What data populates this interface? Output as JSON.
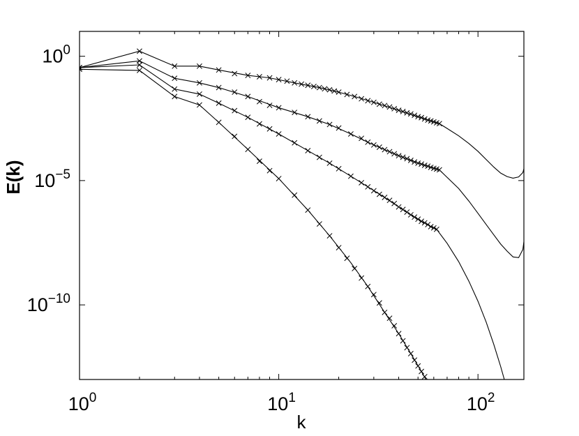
{
  "chart_data": {
    "type": "line",
    "title": "",
    "xlabel": "k",
    "ylabel": "E(k)",
    "xscale": "log",
    "yscale": "log",
    "xlim": [
      1,
      170
    ],
    "ylim": [
      1e-13,
      10.0
    ],
    "grid": false,
    "legend": "none",
    "x_ticks": [
      {
        "value": 1,
        "base": "10",
        "exp": "0"
      },
      {
        "value": 10,
        "base": "10",
        "exp": "1"
      },
      {
        "value": 100,
        "base": "10",
        "exp": "2"
      }
    ],
    "y_ticks": [
      {
        "value": 1,
        "base": "10",
        "exp": "0"
      },
      {
        "value": 1e-05,
        "base": "10",
        "exp": "−5"
      },
      {
        "value": 1e-10,
        "base": "10",
        "exp": "−10"
      }
    ],
    "line_color": "#000000",
    "series": [
      {
        "line_x": [
          1,
          2,
          3,
          4,
          5,
          7,
          9,
          12,
          16,
          20,
          25,
          30,
          35,
          40,
          45,
          50,
          55,
          60,
          64,
          70,
          80,
          90,
          100,
          110,
          120,
          130,
          140,
          150,
          160,
          168,
          170
        ],
        "line_y": [
          0.35,
          1.6,
          0.4,
          0.4,
          0.28,
          0.17,
          0.135,
          0.085,
          0.055,
          0.036,
          0.022,
          0.014,
          0.0095,
          0.0067,
          0.0049,
          0.0037,
          0.0029,
          0.0023,
          0.00195,
          0.00125,
          0.00063,
          0.00031,
          0.00015,
          7e-05,
          3.5e-05,
          2e-05,
          1.45e-05,
          1.25e-05,
          1.4e-05,
          2.1e-05,
          3e-05
        ],
        "mark_x": [
          1,
          2,
          3,
          4,
          5,
          6,
          7,
          8,
          9,
          10,
          11,
          12,
          13,
          14,
          15,
          16,
          17,
          18,
          19,
          20,
          22,
          24,
          26,
          28,
          30,
          32,
          34,
          36,
          38,
          40,
          42,
          44,
          46,
          48,
          50,
          52,
          54,
          56,
          58,
          60,
          62,
          64
        ],
        "mark_y": [
          0.35,
          1.6,
          0.4,
          0.4,
          0.28,
          0.2,
          0.17,
          0.15,
          0.135,
          0.115,
          0.1,
          0.085,
          0.076,
          0.068,
          0.061,
          0.055,
          0.049,
          0.045,
          0.04,
          0.036,
          0.029,
          0.024,
          0.0195,
          0.0163,
          0.014,
          0.0118,
          0.0104,
          0.0091,
          0.0078,
          0.0067,
          0.006,
          0.0053,
          0.0048,
          0.0042,
          0.0037,
          0.0034,
          0.003,
          0.0027,
          0.0025,
          0.0023,
          0.0021,
          0.00195
        ]
      },
      {
        "line_x": [
          1,
          2,
          3,
          4,
          5,
          7,
          10,
          14,
          18,
          23,
          28,
          34,
          40,
          46,
          52,
          58,
          64,
          70,
          80,
          90,
          100,
          110,
          120,
          130,
          140,
          150,
          160,
          168,
          170
        ],
        "line_y": [
          0.35,
          0.65,
          0.13,
          0.085,
          0.055,
          0.024,
          0.0085,
          0.0037,
          0.0018,
          0.00075,
          0.00035,
          0.000175,
          0.0001,
          6.5e-05,
          4.6e-05,
          3.4e-05,
          2.7e-05,
          1.35e-05,
          4.8e-06,
          1.5e-06,
          4.8e-07,
          1.7e-07,
          6.6e-08,
          2.8e-08,
          1.45e-08,
          8.5e-09,
          8e-09,
          1.7e-08,
          3.5e-08
        ],
        "mark_x": [
          1,
          2,
          3,
          4,
          5,
          6,
          7,
          8,
          9,
          10,
          12,
          14,
          16,
          18,
          20,
          23,
          26,
          28,
          30,
          32,
          34,
          36,
          38,
          40,
          42,
          44,
          46,
          48,
          50,
          52,
          54,
          56,
          58,
          60,
          62,
          64
        ],
        "mark_y": [
          0.35,
          0.65,
          0.13,
          0.085,
          0.055,
          0.036,
          0.024,
          0.015,
          0.0106,
          0.0085,
          0.0055,
          0.0037,
          0.0025,
          0.0018,
          0.0013,
          0.00075,
          0.0005,
          0.00035,
          0.00027,
          0.00022,
          0.000175,
          0.000145,
          0.00012,
          0.0001,
          8.7e-05,
          7.6e-05,
          6.5e-05,
          5.6e-05,
          5e-05,
          4.6e-05,
          4.1e-05,
          3.8e-05,
          3.4e-05,
          3.1e-05,
          2.9e-05,
          2.7e-05
        ]
      },
      {
        "line_x": [
          1,
          2,
          3,
          4,
          5,
          7,
          10,
          14,
          18,
          23,
          28,
          34,
          40,
          46,
          52,
          58,
          62,
          70,
          80,
          90,
          100,
          110,
          120,
          130,
          140,
          150,
          160,
          166,
          170
        ],
        "line_y": [
          0.35,
          0.45,
          0.048,
          0.03,
          0.013,
          0.0035,
          0.00075,
          0.00016,
          5e-05,
          1.5e-05,
          5.6e-06,
          2.1e-06,
          8.7e-07,
          4.2e-07,
          2.3e-07,
          1.4e-07,
          1.1e-07,
          3e-08,
          5.5e-09,
          9e-10,
          1.4e-10,
          2e-11,
          2.6e-12,
          3.3e-13,
          4e-14,
          5.5e-15,
          1e-15,
          6e-16,
          5e-16
        ],
        "mark_x": [
          1,
          2,
          3,
          4,
          5,
          6,
          7,
          8,
          9,
          10,
          12,
          14,
          16,
          18,
          20,
          23,
          26,
          28,
          30,
          32,
          34,
          36,
          38,
          40,
          42,
          44,
          46,
          48,
          50,
          52,
          54,
          56,
          58,
          60,
          62
        ],
        "mark_y": [
          0.35,
          0.45,
          0.048,
          0.03,
          0.013,
          0.0065,
          0.0035,
          0.0019,
          0.0012,
          0.00075,
          0.00033,
          0.00016,
          8.6e-05,
          5e-05,
          3e-05,
          1.5e-05,
          8.2e-06,
          5.6e-06,
          3.9e-06,
          2.8e-06,
          2.1e-06,
          1.6e-06,
          1.2e-06,
          8.7e-07,
          6.9e-07,
          5.4e-07,
          4.2e-07,
          3.4e-07,
          2.8e-07,
          2.3e-07,
          2e-07,
          1.7e-07,
          1.4e-07,
          1.25e-07,
          1.1e-07
        ]
      },
      {
        "line_x": [
          1,
          2,
          3,
          4,
          5,
          7,
          10,
          14,
          18,
          23,
          28,
          34,
          40,
          46,
          52,
          58,
          62,
          64
        ],
        "line_y": [
          0.3,
          0.27,
          0.024,
          0.011,
          0.0022,
          0.00018,
          1.2e-05,
          6.5e-07,
          6e-08,
          5e-09,
          5.5e-10,
          5e-11,
          7e-12,
          1.1e-12,
          2.1e-13,
          4.5e-14,
          1.5e-14,
          1e-14
        ],
        "mark_x": [
          1,
          2,
          3,
          4,
          5,
          6,
          7,
          8,
          9,
          10,
          12,
          14,
          16,
          18,
          20,
          22,
          24,
          26,
          28,
          30,
          32,
          34,
          36,
          38,
          40,
          42,
          44,
          46,
          48,
          50,
          52,
          54,
          56,
          58,
          60,
          62
        ],
        "mark_y": [
          0.3,
          0.27,
          0.024,
          0.011,
          0.0022,
          0.0006,
          0.00018,
          6e-05,
          2.5e-05,
          1.2e-05,
          2.6e-06,
          6.5e-07,
          1.8e-07,
          6e-08,
          2e-08,
          7.5e-09,
          2.9e-09,
          1.2e-09,
          5.5e-10,
          2.6e-10,
          1.2e-10,
          5e-11,
          2.9e-11,
          1.45e-11,
          7e-12,
          3.6e-12,
          1.9e-12,
          1.1e-12,
          6e-13,
          3.5e-13,
          2.1e-13,
          1.3e-13,
          7.5e-14,
          4.5e-14,
          2.7e-14,
          1.5e-14
        ]
      }
    ]
  }
}
